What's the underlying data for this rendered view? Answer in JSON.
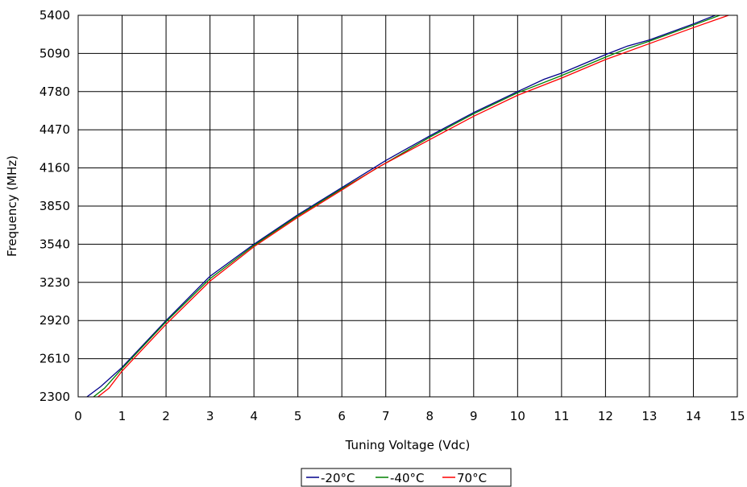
{
  "chart_data": {
    "type": "line",
    "title": "",
    "xlabel": "Tuning Voltage (Vdc)",
    "ylabel": "Frequency (MHz)",
    "xlim": [
      0,
      15
    ],
    "ylim": [
      2300,
      5400
    ],
    "x_ticks": [
      "0",
      "1",
      "2",
      "3",
      "4",
      "5",
      "6",
      "7",
      "8",
      "9",
      "10",
      "11",
      "12",
      "13",
      "14",
      "15"
    ],
    "y_ticks": [
      "2300",
      "2610",
      "2920",
      "3230",
      "3540",
      "3850",
      "4160",
      "4470",
      "4780",
      "5090",
      "5400"
    ],
    "grid": true,
    "legend_position": "bottom-center",
    "series": [
      {
        "name": "-20°C",
        "color": "#00008b",
        "points": [
          [
            0.2,
            2300
          ],
          [
            0.5,
            2380
          ],
          [
            1,
            2540
          ],
          [
            2,
            2920
          ],
          [
            3,
            3280
          ],
          [
            4,
            3540
          ],
          [
            5,
            3780
          ],
          [
            6,
            4000
          ],
          [
            7,
            4220
          ],
          [
            8,
            4420
          ],
          [
            9,
            4610
          ],
          [
            10,
            4780
          ],
          [
            10.6,
            4880
          ],
          [
            11,
            4930
          ],
          [
            12,
            5080
          ],
          [
            12.5,
            5150
          ],
          [
            13,
            5200
          ],
          [
            14,
            5330
          ],
          [
            14.5,
            5400
          ]
        ]
      },
      {
        "name": "-40°C",
        "color": "#008000",
        "points": [
          [
            0.35,
            2300
          ],
          [
            0.6,
            2370
          ],
          [
            1,
            2530
          ],
          [
            2,
            2910
          ],
          [
            3,
            3260
          ],
          [
            4,
            3530
          ],
          [
            5,
            3770
          ],
          [
            6,
            3990
          ],
          [
            7,
            4200
          ],
          [
            8,
            4410
          ],
          [
            9,
            4600
          ],
          [
            10,
            4770
          ],
          [
            11,
            4910
          ],
          [
            12,
            5060
          ],
          [
            12.5,
            5130
          ],
          [
            13,
            5190
          ],
          [
            14,
            5320
          ],
          [
            14.6,
            5400
          ]
        ]
      },
      {
        "name": "70°C",
        "color": "#ff0000",
        "points": [
          [
            0.45,
            2300
          ],
          [
            0.7,
            2370
          ],
          [
            1,
            2510
          ],
          [
            2,
            2890
          ],
          [
            3,
            3240
          ],
          [
            4,
            3520
          ],
          [
            5,
            3760
          ],
          [
            6,
            3980
          ],
          [
            6.8,
            4160
          ],
          [
            8,
            4390
          ],
          [
            9,
            4580
          ],
          [
            10,
            4750
          ],
          [
            11,
            4890
          ],
          [
            12,
            5040
          ],
          [
            13,
            5170
          ],
          [
            14,
            5300
          ],
          [
            14.8,
            5400
          ]
        ]
      }
    ]
  }
}
